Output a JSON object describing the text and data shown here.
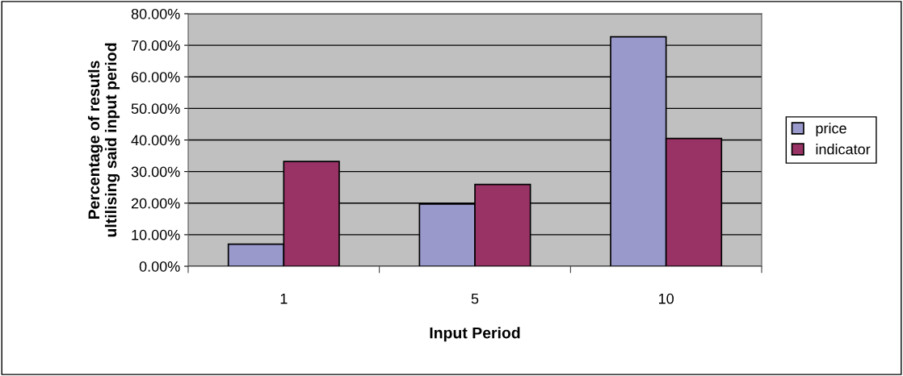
{
  "chart_data": {
    "type": "bar",
    "xlabel": "Input Period",
    "ylabel": "Percentage of resutls\nultilising said input period",
    "categories": [
      "1",
      "5",
      "10"
    ],
    "series": [
      {
        "name": "price",
        "color": "#9999cc",
        "values": [
          7.0,
          19.7,
          72.7
        ]
      },
      {
        "name": "indicator",
        "color": "#993366",
        "values": [
          33.2,
          25.9,
          40.5
        ]
      }
    ],
    "ylim": [
      0,
      80
    ],
    "yticks": [
      {
        "value": 0,
        "label": "0.00%"
      },
      {
        "value": 10,
        "label": "10.00%"
      },
      {
        "value": 20,
        "label": "20.00%"
      },
      {
        "value": 30,
        "label": "30.00%"
      },
      {
        "value": 40,
        "label": "40.00%"
      },
      {
        "value": 50,
        "label": "50.00%"
      },
      {
        "value": 60,
        "label": "60.00%"
      },
      {
        "value": 70,
        "label": "70.00%"
      },
      {
        "value": 80,
        "label": "80.00%"
      }
    ],
    "grid": "y",
    "legend": "right"
  }
}
